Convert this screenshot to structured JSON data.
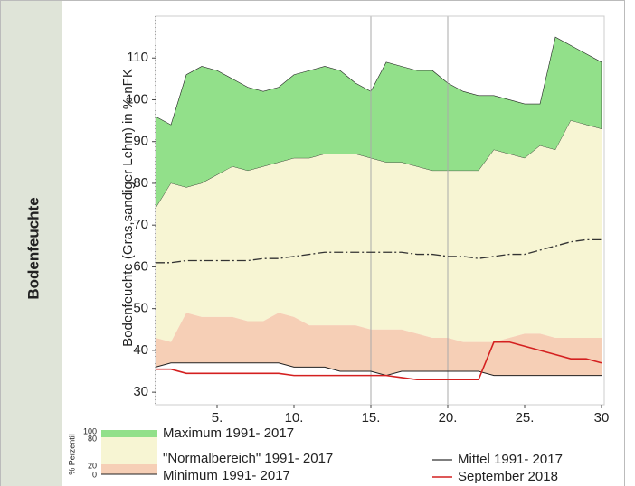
{
  "side_label": "Bodenfeuchte",
  "chart_data": {
    "type": "band-area",
    "ylabel": "Bodenfeuchte (Gras,sandiger Lehm) in % nFK",
    "x": [
      1,
      2,
      3,
      4,
      5,
      6,
      7,
      8,
      9,
      10,
      11,
      12,
      13,
      14,
      15,
      16,
      17,
      18,
      19,
      20,
      21,
      22,
      23,
      24,
      25,
      26,
      27,
      28,
      29,
      30
    ],
    "xlim": [
      1,
      30
    ],
    "xticks": [
      {
        "value": 5,
        "label": "5."
      },
      {
        "value": 10,
        "label": "10."
      },
      {
        "value": 15,
        "label": "15."
      },
      {
        "value": 20,
        "label": "20."
      },
      {
        "value": 25,
        "label": "25."
      },
      30
    ],
    "xgrid": [
      15,
      20
    ],
    "ylim": [
      27,
      120
    ],
    "yticks": [
      30,
      40,
      50,
      60,
      70,
      80,
      90,
      100,
      110
    ],
    "legend_title": "% Perzentil",
    "legend_percentiles": [
      100,
      80,
      20,
      0
    ],
    "series": [
      {
        "name": "Maximum 1991- 2017",
        "color": "#92e08a",
        "values": [
          96,
          94,
          106,
          108,
          107,
          105,
          103,
          102,
          103,
          106,
          107,
          108,
          107,
          104,
          102,
          109,
          108,
          107,
          107,
          104,
          102,
          101,
          101,
          100,
          99,
          99,
          115,
          113,
          111,
          109
        ]
      },
      {
        "name": "\"Normalbereich\" 1991- 2017",
        "color": "#f7f5d3",
        "values": [
          74,
          80,
          79,
          80,
          82,
          84,
          83,
          84,
          85,
          86,
          86,
          87,
          87,
          87,
          86,
          85,
          85,
          84,
          83,
          83,
          83,
          83,
          88,
          87,
          86,
          89,
          88,
          95,
          94,
          93
        ],
        "lower": [
          43,
          42,
          49,
          48,
          48,
          48,
          47,
          47,
          49,
          48,
          46,
          46,
          46,
          46,
          45,
          45,
          45,
          44,
          43,
          43,
          42,
          42,
          42,
          43,
          44,
          44,
          43,
          43,
          43,
          43
        ]
      },
      {
        "name": "Minimum 1991- 2017",
        "color": "#f6cfb6",
        "values": [
          36,
          37,
          37,
          37,
          37,
          37,
          37,
          37,
          37,
          36,
          36,
          36,
          35,
          35,
          35,
          34,
          35,
          35,
          35,
          35,
          35,
          35,
          34,
          34,
          34,
          34,
          34,
          34,
          34,
          34
        ]
      },
      {
        "name": "Mittel 1991- 2017",
        "color": "#333333",
        "values": [
          61,
          61,
          61.5,
          61.5,
          61.5,
          61.5,
          61.5,
          62,
          62,
          62.5,
          63,
          63.5,
          63.5,
          63.5,
          63.5,
          63.5,
          63.5,
          63,
          63,
          62.5,
          62.5,
          62,
          62.5,
          63,
          63,
          64,
          65,
          66,
          66.5,
          66.5
        ]
      },
      {
        "name": "September 2018",
        "color": "#d42020",
        "values": [
          35.5,
          35.5,
          34.5,
          34.5,
          34.5,
          34.5,
          34.5,
          34.5,
          34.5,
          34,
          34,
          34,
          34,
          34,
          34,
          34,
          33.5,
          33,
          33,
          33,
          33,
          33,
          42,
          42,
          41,
          40,
          39,
          38,
          38,
          37
        ]
      }
    ]
  }
}
